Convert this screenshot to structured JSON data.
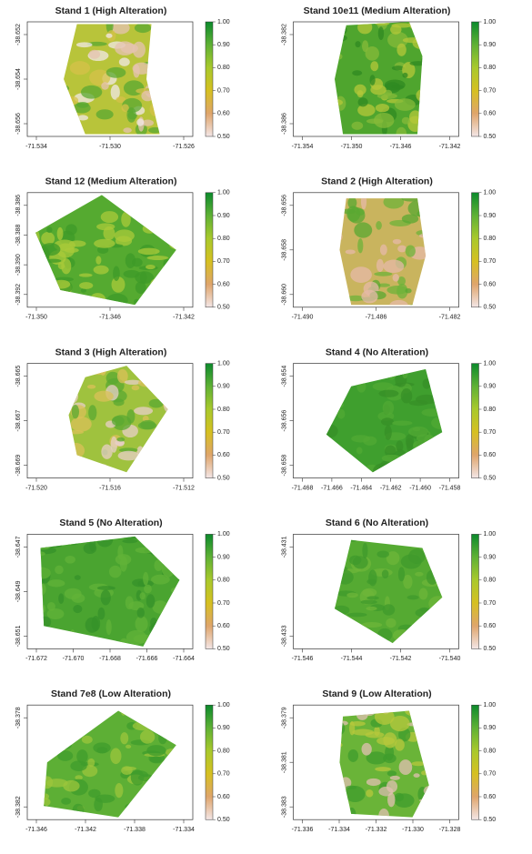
{
  "colorbar": {
    "ticks": [
      "1.00",
      "0.90",
      "0.80",
      "0.70",
      "0.60",
      "0.50"
    ],
    "colors": [
      "#0c8a2c",
      "#5fb135",
      "#a9c92c",
      "#d6c021",
      "#dfa56b",
      "#f3e6e6"
    ]
  },
  "panels": [
    {
      "title": "Stand 1 (High Alteration)",
      "xticks": [
        "-71.534",
        "-71.530",
        "-71.526"
      ],
      "yticks": [
        "-38.652",
        "-38.654",
        "-38.656"
      ]
    },
    {
      "title": "Stand 10e11 (Medium Alteration)",
      "xticks": [
        "-71.354",
        "-71.350",
        "-71.346",
        "-71.342"
      ],
      "yticks": [
        "-38.382",
        "-38.386"
      ]
    },
    {
      "title": "Stand 12 (Medium Alteration)",
      "xticks": [
        "-71.350",
        "-71.346",
        "-71.342"
      ],
      "yticks": [
        "-38.386",
        "-38.388",
        "-38.390",
        "-38.392"
      ]
    },
    {
      "title": "Stand 2 (High Alteration)",
      "xticks": [
        "-71.490",
        "-71.486",
        "-71.482"
      ],
      "yticks": [
        "-38.656",
        "-38.658",
        "-38.660"
      ]
    },
    {
      "title": "Stand 3 (High Alteration)",
      "xticks": [
        "-71.520",
        "-71.516",
        "-71.512"
      ],
      "yticks": [
        "-38.665",
        "-38.667",
        "-38.669"
      ]
    },
    {
      "title": "Stand 4 (No Alteration)",
      "xticks": [
        "-71.468",
        "-71.466",
        "-71.464",
        "-71.462",
        "-71.460",
        "-71.458"
      ],
      "yticks": [
        "-38.654",
        "-38.656",
        "-38.658"
      ]
    },
    {
      "title": "Stand 5 (No Alteration)",
      "xticks": [
        "-71.672",
        "-71.670",
        "-71.668",
        "-71.666",
        "-71.664"
      ],
      "yticks": [
        "-38.647",
        "-38.649",
        "-38.651"
      ]
    },
    {
      "title": "Stand 6 (No Alteration)",
      "xticks": [
        "-71.546",
        "-71.544",
        "-71.542",
        "-71.540"
      ],
      "yticks": [
        "-38.431",
        "-38.433"
      ]
    },
    {
      "title": "Stand 7e8 (Low Alteration)",
      "xticks": [
        "-71.346",
        "-71.342",
        "-71.338",
        "-71.334"
      ],
      "yticks": [
        "-38.378",
        "-38.382"
      ]
    },
    {
      "title": "Stand 9 (Low Alteration)",
      "xticks": [
        "-71.336",
        "-71.334",
        "-71.332",
        "-71.330",
        "-71.328"
      ],
      "yticks": [
        "-38.379",
        "-38.381",
        "-38.383"
      ]
    }
  ]
}
